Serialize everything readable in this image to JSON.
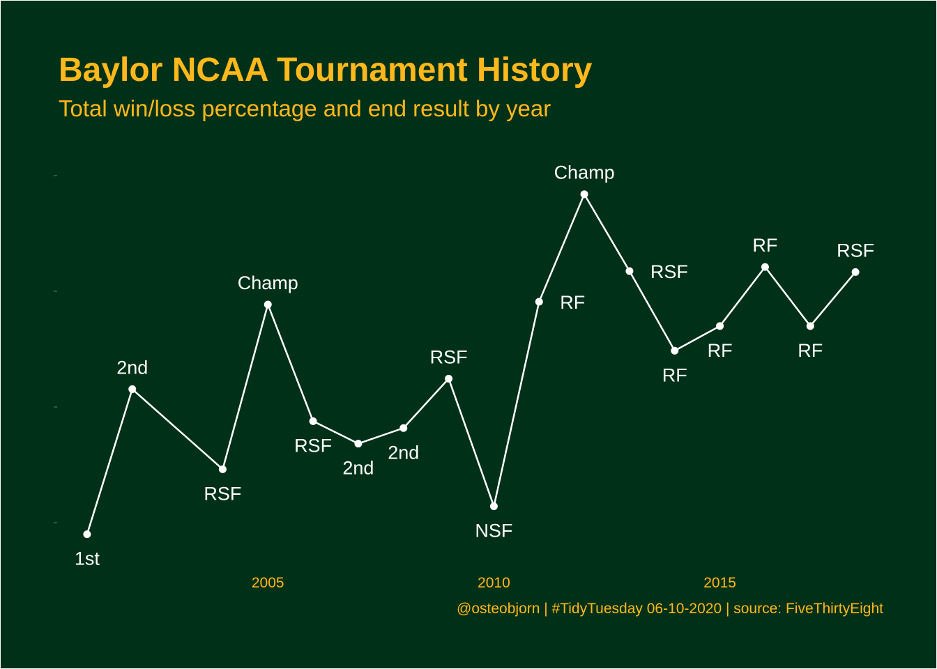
{
  "colors": {
    "background": "#013018",
    "accent": "#FFB81C",
    "line": "#ffffff",
    "tick": "#3a5a3a"
  },
  "chart_data": {
    "type": "line",
    "title": "Baylor NCAA Tournament History",
    "subtitle": "Total win/loss percentage and end result by year",
    "caption": "@osteobjorn | #TidyTuesday 06-10-2020 | source: FiveThirtyEight",
    "xlabel": "",
    "ylabel": "",
    "x_ticks": [
      2005,
      2010,
      2015
    ],
    "y_tick_count": 4,
    "xlim": [
      2000.4,
      2018.6
    ],
    "ylim": [
      0,
      0.9
    ],
    "grid": false,
    "points": [
      {
        "year": 2001,
        "value": 0.06,
        "result": "1st",
        "label_pos": "below"
      },
      {
        "year": 2002,
        "value": 0.377,
        "result": "2nd",
        "label_pos": "above"
      },
      {
        "year": 2004,
        "value": 0.202,
        "result": "RSF",
        "label_pos": "below"
      },
      {
        "year": 2005,
        "value": 0.562,
        "result": "Champ",
        "label_pos": "above"
      },
      {
        "year": 2006,
        "value": 0.307,
        "result": "RSF",
        "label_pos": "below"
      },
      {
        "year": 2007,
        "value": 0.258,
        "result": "2nd",
        "label_pos": "below"
      },
      {
        "year": 2008,
        "value": 0.292,
        "result": "2nd",
        "label_pos": "below-right"
      },
      {
        "year": 2009,
        "value": 0.4,
        "result": "RSF",
        "label_pos": "above"
      },
      {
        "year": 2010,
        "value": 0.121,
        "result": "NSF",
        "label_pos": "below"
      },
      {
        "year": 2011,
        "value": 0.568,
        "result": "RF",
        "label_pos": "right"
      },
      {
        "year": 2012,
        "value": 0.803,
        "result": "Champ",
        "label_pos": "above"
      },
      {
        "year": 2013,
        "value": 0.635,
        "result": "RSF",
        "label_pos": "right"
      },
      {
        "year": 2014,
        "value": 0.461,
        "result": "RF",
        "label_pos": "below"
      },
      {
        "year": 2015,
        "value": 0.515,
        "result": "RF",
        "label_pos": "below"
      },
      {
        "year": 2016,
        "value": 0.644,
        "result": "RF",
        "label_pos": "above"
      },
      {
        "year": 2017,
        "value": 0.515,
        "result": "RF",
        "label_pos": "below"
      },
      {
        "year": 2018,
        "value": 0.633,
        "result": "RSF",
        "label_pos": "above"
      }
    ]
  }
}
